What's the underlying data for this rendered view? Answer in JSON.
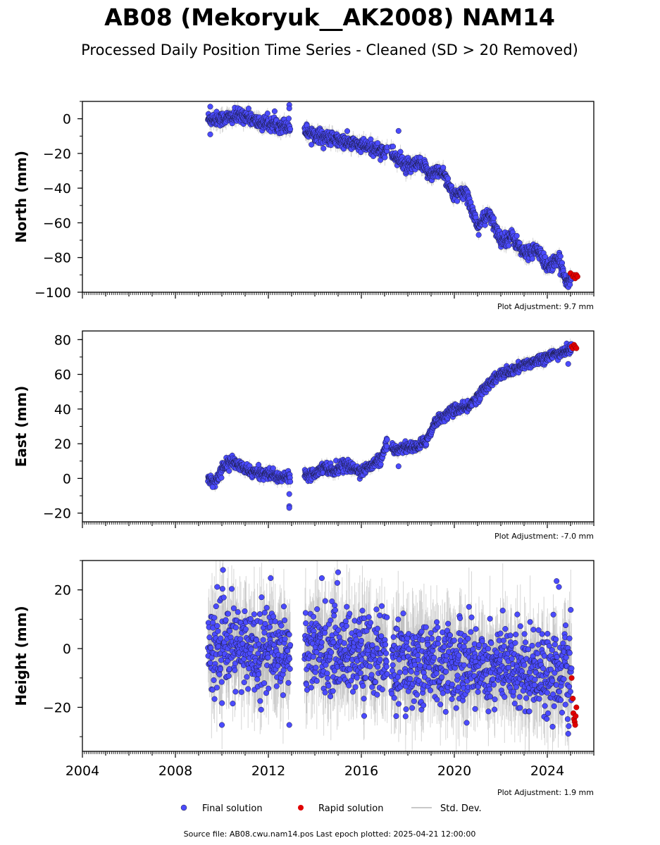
{
  "title": "AB08 (Mekoryuk__AK2008) NAM14",
  "subtitle": "Processed Daily Position Time Series - Cleaned (SD > 20 Removed)",
  "footer": "Source file: AB08.cwu.nam14.pos  Last epoch plotted: 2025-04-21 12:00:00",
  "legend": {
    "final": "Final solution",
    "rapid": "Rapid solution",
    "std": "Std. Dev."
  },
  "colors": {
    "final": "#4b4bff",
    "rapid": "#e00000",
    "std": "#b4b4b4"
  },
  "chart_data": [
    {
      "type": "scatter",
      "ylabel": "North (mm)",
      "xlim": [
        2004,
        2026
      ],
      "ylim": [
        -100,
        10
      ],
      "yticks": [
        0,
        -20,
        -40,
        -60,
        -80,
        -100
      ],
      "adjustment": "Plot Adjustment: 9.7 mm",
      "final_trend": [
        [
          2009.4,
          0
        ],
        [
          2010.0,
          0
        ],
        [
          2010.5,
          1
        ],
        [
          2011.0,
          2
        ],
        [
          2011.5,
          -2
        ],
        [
          2012.0,
          -3
        ],
        [
          2012.9,
          -4
        ],
        [
          2013.6,
          -7
        ],
        [
          2014.5,
          -11
        ],
        [
          2015.5,
          -14
        ],
        [
          2016.5,
          -17
        ],
        [
          2017.1,
          -19
        ],
        [
          2017.3,
          -20
        ],
        [
          2018.0,
          -28
        ],
        [
          2018.5,
          -26
        ],
        [
          2019.0,
          -32
        ],
        [
          2019.5,
          -30
        ],
        [
          2020.0,
          -45
        ],
        [
          2020.5,
          -42
        ],
        [
          2021.0,
          -62
        ],
        [
          2021.5,
          -55
        ],
        [
          2022.0,
          -70
        ],
        [
          2022.5,
          -68
        ],
        [
          2023.0,
          -78
        ],
        [
          2023.5,
          -75
        ],
        [
          2024.0,
          -85
        ],
        [
          2024.5,
          -82
        ],
        [
          2024.9,
          -95
        ],
        [
          2025.1,
          -90
        ]
      ],
      "noise": 2,
      "outliers": [
        [
          2009.5,
          7
        ],
        [
          2009.5,
          -9
        ],
        [
          2012.9,
          8
        ],
        [
          2012.9,
          6
        ],
        [
          2017.6,
          -7
        ]
      ],
      "rapid": [
        [
          2025.0,
          -89
        ],
        [
          2025.1,
          -91
        ],
        [
          2025.15,
          -90
        ],
        [
          2025.2,
          -92
        ],
        [
          2025.25,
          -90
        ],
        [
          2025.3,
          -91
        ]
      ]
    },
    {
      "type": "scatter",
      "ylabel": "East (mm)",
      "xlim": [
        2004,
        2026
      ],
      "ylim": [
        -25,
        85
      ],
      "yticks": [
        80,
        60,
        40,
        20,
        0,
        -20
      ],
      "adjustment": "Plot Adjustment: -7.0 mm",
      "final_trend": [
        [
          2009.4,
          0
        ],
        [
          2009.7,
          -2
        ],
        [
          2010.0,
          5
        ],
        [
          2010.3,
          10
        ],
        [
          2010.7,
          8
        ],
        [
          2011.0,
          5
        ],
        [
          2011.5,
          3
        ],
        [
          2012.0,
          3
        ],
        [
          2012.5,
          0
        ],
        [
          2012.9,
          2
        ],
        [
          2013.6,
          2
        ],
        [
          2014.0,
          3
        ],
        [
          2014.4,
          7
        ],
        [
          2014.8,
          4
        ],
        [
          2015.2,
          8
        ],
        [
          2015.6,
          6
        ],
        [
          2016.0,
          4
        ],
        [
          2016.5,
          8
        ],
        [
          2016.9,
          12
        ],
        [
          2017.1,
          21
        ],
        [
          2017.3,
          16
        ],
        [
          2017.8,
          18
        ],
        [
          2018.4,
          18
        ],
        [
          2018.8,
          22
        ],
        [
          2019.2,
          33
        ],
        [
          2019.6,
          36
        ],
        [
          2020.0,
          40
        ],
        [
          2020.5,
          40
        ],
        [
          2021.0,
          47
        ],
        [
          2021.5,
          55
        ],
        [
          2022.0,
          60
        ],
        [
          2022.5,
          62
        ],
        [
          2023.0,
          65
        ],
        [
          2023.5,
          68
        ],
        [
          2024.0,
          70
        ],
        [
          2024.5,
          72
        ],
        [
          2025.1,
          75
        ]
      ],
      "noise": 1.5,
      "outliers": [
        [
          2009.6,
          -5
        ],
        [
          2012.9,
          -9
        ],
        [
          2012.9,
          -16
        ],
        [
          2012.9,
          -17
        ],
        [
          2017.6,
          7
        ],
        [
          2024.9,
          66
        ]
      ],
      "rapid": [
        [
          2025.05,
          76
        ],
        [
          2025.1,
          75
        ],
        [
          2025.15,
          77
        ],
        [
          2025.2,
          76
        ],
        [
          2025.25,
          75
        ]
      ]
    },
    {
      "type": "scatter",
      "ylabel": "Height (mm)",
      "xlim": [
        2004,
        2026
      ],
      "ylim": [
        -35,
        30
      ],
      "yticks": [
        20,
        0,
        -20
      ],
      "xticks": [
        "2004",
        "2008",
        "2012",
        "2016",
        "2020",
        "2024"
      ],
      "adjustment": "Plot Adjustment: 1.9 mm",
      "final_trend": [
        [
          2009.4,
          0
        ],
        [
          2012.9,
          0
        ],
        [
          2013.6,
          0
        ],
        [
          2017.1,
          -2
        ],
        [
          2017.3,
          -5
        ],
        [
          2020.0,
          -5
        ],
        [
          2022.0,
          -6
        ],
        [
          2025.1,
          -8
        ]
      ],
      "noise": 7,
      "outliers": [
        [
          2009.8,
          21
        ],
        [
          2010.0,
          -26
        ],
        [
          2012.1,
          24
        ],
        [
          2012.9,
          -26
        ],
        [
          2014.3,
          24
        ],
        [
          2015.0,
          26
        ],
        [
          2017.5,
          -23
        ],
        [
          2024.4,
          23
        ],
        [
          2024.5,
          21
        ],
        [
          2024.9,
          -29
        ]
      ],
      "rapid": [
        [
          2025.05,
          -10
        ],
        [
          2025.1,
          -17
        ],
        [
          2025.12,
          -22
        ],
        [
          2025.15,
          -24
        ],
        [
          2025.18,
          -25
        ],
        [
          2025.2,
          -26
        ],
        [
          2025.22,
          -23
        ],
        [
          2025.25,
          -20
        ]
      ]
    }
  ]
}
